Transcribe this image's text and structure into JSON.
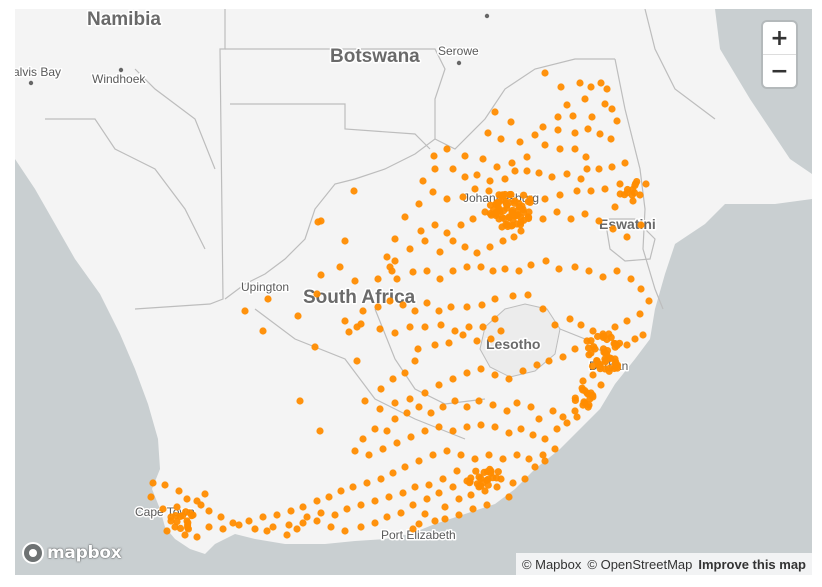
{
  "map": {
    "labels": {
      "namibia": "Namibia",
      "botswana": "Botswana",
      "south_africa": "South Africa",
      "lesotho": "Lesotho",
      "eswatini": "Eswatini",
      "walvis_bay": "alvis Bay",
      "windhoek": "Windhoek",
      "serowe": "Serowe",
      "upington": "Upington",
      "johannesburg": "Johannesburg",
      "durban": "Durban",
      "cape_town": "Cape Town",
      "port_elizabeth": "Port Elizabeth"
    },
    "marker_color": "#ff8c00",
    "land_color": "#f4f4f4",
    "water_color": "#c9cfd1"
  },
  "controls": {
    "zoom_in": "+",
    "zoom_out": "−"
  },
  "logo": {
    "text": "mapbox"
  },
  "attribution": {
    "mapbox": "© Mapbox",
    "osm": "© OpenStreetMap",
    "improve": "Improve this map"
  }
}
